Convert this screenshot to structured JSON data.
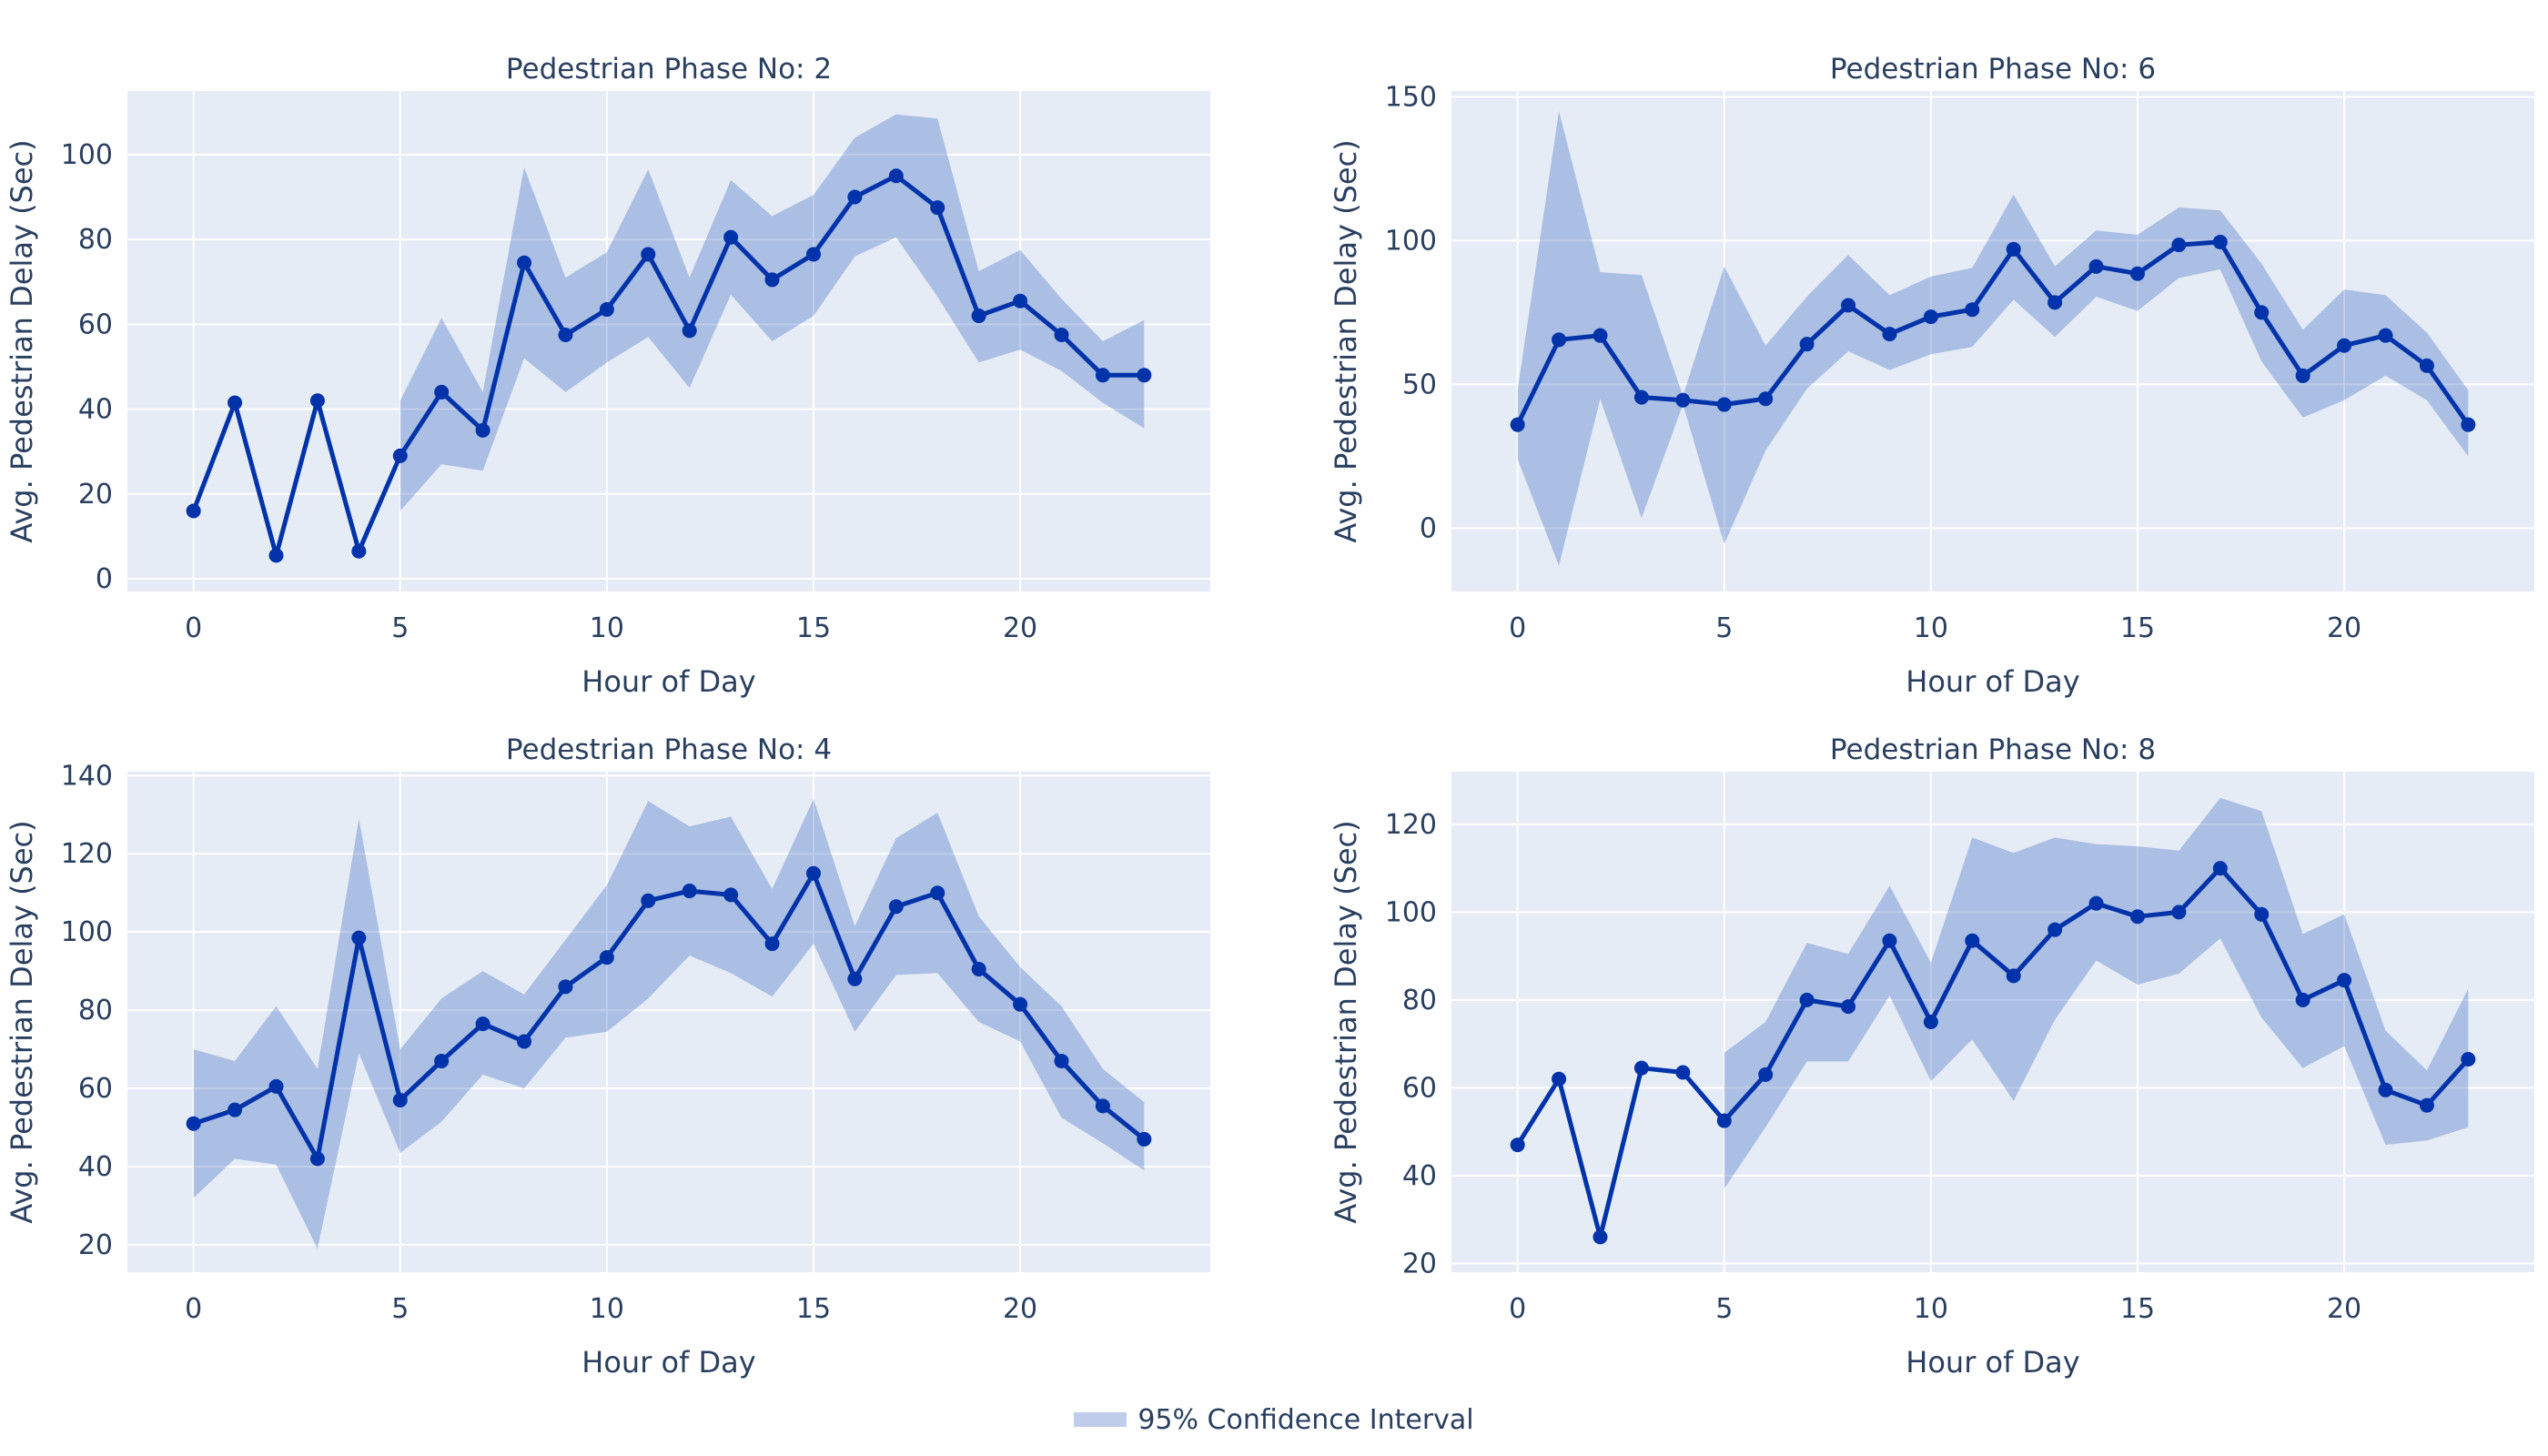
{
  "chart_data": [
    {
      "type": "line",
      "title": "Pedestrian Phase No: 2",
      "xlabel": "Hour of Day",
      "ylabel": "Avg. Pedestrian Delay (Sec)",
      "xlim": [
        -1.6,
        24.6
      ],
      "ylim": [
        -3,
        115
      ],
      "xticks": [
        0,
        5,
        10,
        15,
        20
      ],
      "yticks": [
        0,
        20,
        40,
        60,
        80,
        100
      ],
      "grid": true,
      "x": [
        0,
        1,
        2,
        3,
        4,
        5,
        6,
        7,
        8,
        9,
        10,
        11,
        12,
        13,
        14,
        15,
        16,
        17,
        18,
        19,
        20,
        21,
        22,
        23
      ],
      "series": [
        {
          "name": "",
          "values": [
            16,
            41.5,
            5.5,
            42,
            6.5,
            29,
            44,
            35,
            74.5,
            57.5,
            63.5,
            76.5,
            58.5,
            80.5,
            70.5,
            76.5,
            90,
            95,
            87.5,
            62,
            65.5,
            57.5,
            48,
            48
          ]
        }
      ],
      "ci": {
        "name": "95% Confidence Interval",
        "x": [
          5,
          6,
          7,
          8,
          9,
          10,
          11,
          12,
          13,
          14,
          15,
          16,
          17,
          18,
          19,
          20,
          21,
          22,
          23
        ],
        "lower": [
          16,
          27,
          25.5,
          52,
          44,
          51,
          57,
          45,
          67,
          56,
          62,
          76,
          80.5,
          66.5,
          51,
          54,
          49,
          41.5,
          35.5
        ],
        "upper": [
          42,
          61.5,
          44,
          97,
          71,
          77,
          96.5,
          71,
          94,
          85.5,
          90.5,
          104,
          109.5,
          108.5,
          72.5,
          77.5,
          66,
          56,
          61
        ]
      }
    },
    {
      "type": "line",
      "title": "Pedestrian Phase No: 6",
      "xlabel": "Hour of Day",
      "ylabel": "Avg. Pedestrian Delay (Sec)",
      "xlim": [
        -1.6,
        24.6
      ],
      "ylim": [
        -22,
        152
      ],
      "xticks": [
        0,
        5,
        10,
        15,
        20
      ],
      "yticks": [
        0,
        50,
        100,
        150
      ],
      "grid": true,
      "x": [
        0,
        1,
        2,
        3,
        4,
        5,
        6,
        7,
        8,
        9,
        10,
        11,
        12,
        13,
        14,
        15,
        16,
        17,
        18,
        19,
        20,
        21,
        22,
        23
      ],
      "series": [
        {
          "name": "",
          "values": [
            36,
            65.5,
            67,
            45.5,
            44.5,
            43,
            45,
            64,
            77.5,
            67.5,
            73.5,
            76,
            97,
            78.5,
            91,
            88.5,
            98.5,
            99.5,
            75,
            53,
            63.5,
            67,
            56.5,
            36
          ]
        }
      ],
      "ci": {
        "name": "95% Confidence Interval",
        "x": [
          0,
          1,
          2,
          3,
          4,
          5,
          6,
          7,
          8,
          9,
          10,
          11,
          12,
          13,
          14,
          15,
          16,
          17,
          18,
          19,
          20,
          21,
          22,
          23
        ],
        "lower": [
          24,
          -13,
          45,
          3.5,
          43,
          -5.5,
          27,
          48.5,
          61.5,
          55,
          60.5,
          63,
          79.5,
          66.5,
          80.5,
          75.5,
          87,
          90,
          58,
          38.5,
          44.5,
          53,
          44.5,
          25
        ],
        "upper": [
          48,
          145,
          89,
          88,
          46,
          91,
          63.5,
          80.5,
          95,
          81,
          87.5,
          90.5,
          116,
          91,
          103.5,
          102,
          111.5,
          110.5,
          92,
          69,
          83,
          81,
          68,
          48
        ]
      }
    },
    {
      "type": "line",
      "title": "Pedestrian Phase No: 4",
      "xlabel": "Hour of Day",
      "ylabel": "Avg. Pedestrian Delay (Sec)",
      "xlim": [
        -1.6,
        24.6
      ],
      "ylim": [
        13,
        141
      ],
      "xticks": [
        0,
        5,
        10,
        15,
        20
      ],
      "yticks": [
        20,
        40,
        60,
        80,
        100,
        120,
        140
      ],
      "grid": true,
      "x": [
        0,
        1,
        2,
        3,
        4,
        5,
        6,
        7,
        8,
        9,
        10,
        11,
        12,
        13,
        14,
        15,
        16,
        17,
        18,
        19,
        20,
        21,
        22,
        23
      ],
      "series": [
        {
          "name": "",
          "values": [
            51,
            54.5,
            60.5,
            42,
            98.5,
            57,
            67,
            76.5,
            72,
            86,
            93.5,
            108,
            110.5,
            109.5,
            97,
            115,
            88,
            106.5,
            110,
            90.5,
            81.5,
            67,
            55.5,
            47
          ]
        }
      ],
      "ci": {
        "name": "95% Confidence Interval",
        "x": [
          0,
          1,
          2,
          3,
          4,
          5,
          6,
          7,
          8,
          9,
          10,
          11,
          12,
          13,
          14,
          15,
          16,
          17,
          18,
          19,
          20,
          21,
          22,
          23
        ],
        "lower": [
          32,
          42,
          40.5,
          19,
          69,
          43.5,
          51.5,
          63.5,
          60,
          73,
          74.5,
          83,
          94,
          89.5,
          83.5,
          97,
          74.5,
          89,
          89.5,
          77,
          72,
          52.5,
          46,
          39
        ],
        "upper": [
          70,
          67,
          81,
          65,
          129,
          70,
          83,
          90,
          84,
          98,
          112,
          133.5,
          127,
          129.5,
          111,
          134,
          101.5,
          124,
          130.5,
          104,
          91,
          81,
          65,
          56.5
        ]
      }
    },
    {
      "type": "line",
      "title": "Pedestrian Phase No: 8",
      "xlabel": "Hour of Day",
      "ylabel": "Avg. Pedestrian Delay (Sec)",
      "xlim": [
        -1.6,
        24.6
      ],
      "ylim": [
        18,
        132
      ],
      "xticks": [
        0,
        5,
        10,
        15,
        20
      ],
      "yticks": [
        20,
        40,
        60,
        80,
        100,
        120
      ],
      "grid": true,
      "x": [
        0,
        1,
        2,
        3,
        4,
        5,
        6,
        7,
        8,
        9,
        10,
        11,
        12,
        13,
        14,
        15,
        16,
        17,
        18,
        19,
        20,
        21,
        22,
        23
      ],
      "series": [
        {
          "name": "",
          "values": [
            47,
            62,
            26,
            64.5,
            63.5,
            52.5,
            63,
            80,
            78.5,
            93.5,
            75,
            93.5,
            85.5,
            96,
            102,
            99,
            100,
            110,
            99.5,
            80,
            84.5,
            59.5,
            56,
            66.5
          ]
        }
      ],
      "ci": {
        "name": "95% Confidence Interval",
        "x": [
          5,
          6,
          7,
          8,
          9,
          10,
          11,
          12,
          13,
          14,
          15,
          16,
          17,
          18,
          19,
          20,
          21,
          22,
          23
        ],
        "lower": [
          37,
          51,
          66,
          66,
          81,
          61.5,
          71,
          57,
          75.5,
          89,
          83.5,
          86,
          94,
          76,
          64.5,
          69.5,
          47,
          48,
          51
        ],
        "upper": [
          68,
          75,
          93,
          90.5,
          106,
          88.5,
          117,
          113.5,
          117,
          115.5,
          115,
          114,
          126,
          123,
          95,
          99.5,
          73,
          64,
          82.5
        ]
      }
    }
  ],
  "legend": {
    "label": "95% Confidence Interval",
    "position": "bottom-center"
  },
  "colors": {
    "line": "#0033AA",
    "band": "#0033AA",
    "plot_bg": "#E5ECF6",
    "grid": "#FFFFFF",
    "text": "#2A3F5F"
  }
}
